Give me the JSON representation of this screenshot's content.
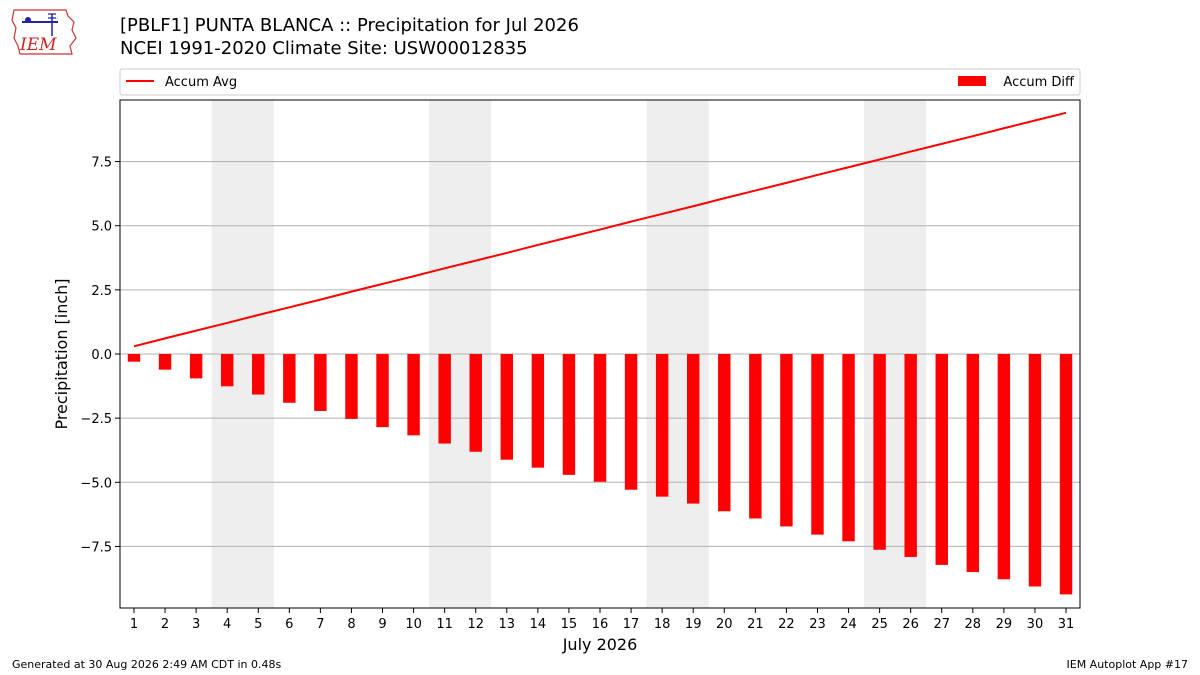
{
  "header": {
    "title_line1": "[PBLF1] PUNTA BLANCA :: Precipitation for Jul 2026",
    "title_line2": "NCEI 1991-2020 Climate Site: USW00012835",
    "logo_text": "IEM"
  },
  "footer": {
    "generated": "Generated at 30 Aug 2026 2:49 AM CDT in 0.48s",
    "app": "IEM Autoplot App #17"
  },
  "colors": {
    "line": "#ff0000",
    "bar": "#ff0000",
    "weekend_band": "#eeeeee",
    "grid": "#b0b0b0"
  },
  "chart_data": {
    "type": "bar",
    "xlabel": "July 2026",
    "ylabel": "Precipitation [inch]",
    "ylim": [
      -9.9,
      9.9
    ],
    "yticks": [
      -7.5,
      -5.0,
      -2.5,
      0.0,
      2.5,
      5.0,
      7.5
    ],
    "ytick_labels": [
      "−7.5",
      "−5.0",
      "−2.5",
      "0.0",
      "2.5",
      "5.0",
      "7.5"
    ],
    "x": [
      1,
      2,
      3,
      4,
      5,
      6,
      7,
      8,
      9,
      10,
      11,
      12,
      13,
      14,
      15,
      16,
      17,
      18,
      19,
      20,
      21,
      22,
      23,
      24,
      25,
      26,
      27,
      28,
      29,
      30,
      31
    ],
    "x_tick_labels": [
      "1",
      "2",
      "3",
      "4",
      "5",
      "6",
      "7",
      "8",
      "9",
      "10",
      "11",
      "12",
      "13",
      "14",
      "15",
      "16",
      "17",
      "18",
      "19",
      "20",
      "21",
      "22",
      "23",
      "24",
      "25",
      "26",
      "27",
      "28",
      "29",
      "30",
      "31"
    ],
    "grid": true,
    "legend": {
      "left": "top-left",
      "right": "top-right"
    },
    "weekend_bands": [
      [
        4,
        5
      ],
      [
        11,
        12
      ],
      [
        18,
        19
      ],
      [
        25,
        26
      ]
    ],
    "series": [
      {
        "name": "Accum Avg",
        "kind": "line",
        "values": [
          0.3,
          0.61,
          0.91,
          1.21,
          1.52,
          1.82,
          2.12,
          2.43,
          2.73,
          3.03,
          3.34,
          3.64,
          3.94,
          4.25,
          4.55,
          4.85,
          5.16,
          5.46,
          5.76,
          6.07,
          6.37,
          6.67,
          6.98,
          7.28,
          7.58,
          7.89,
          8.19,
          8.49,
          8.8,
          9.1,
          9.4
        ]
      },
      {
        "name": "Accum Diff",
        "kind": "bar",
        "values": [
          -0.3,
          -0.61,
          -0.95,
          -1.26,
          -1.58,
          -1.9,
          -2.22,
          -2.53,
          -2.85,
          -3.17,
          -3.49,
          -3.81,
          -4.12,
          -4.43,
          -4.71,
          -4.98,
          -5.29,
          -5.56,
          -5.83,
          -6.13,
          -6.41,
          -6.72,
          -7.04,
          -7.3,
          -7.63,
          -7.91,
          -8.22,
          -8.5,
          -8.78,
          -9.06,
          -9.37
        ]
      }
    ]
  }
}
